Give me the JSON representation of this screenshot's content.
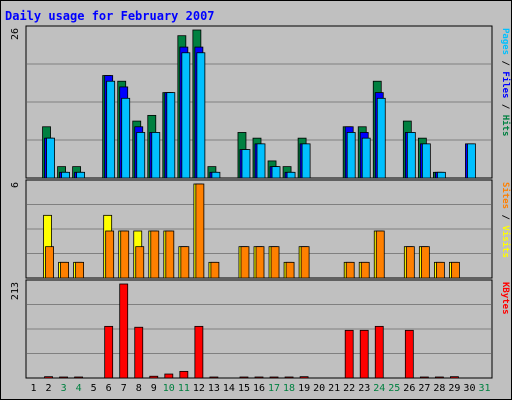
{
  "colors": {
    "background": "#c0c0c0",
    "grid": "#808080",
    "pages": "#00c0ff",
    "files": "#0000ff",
    "hits": "#008040",
    "visits": "#ffff00",
    "sites": "#ff8000",
    "kbytes": "#ff0000",
    "title": "#0000ff",
    "weekend_day_label": "#008040"
  },
  "chart_data": {
    "type": "bar",
    "title": "Daily usage for February 2007",
    "days": [
      1,
      2,
      3,
      4,
      5,
      6,
      7,
      8,
      9,
      10,
      11,
      12,
      13,
      14,
      15,
      16,
      17,
      18,
      19,
      20,
      21,
      22,
      23,
      24,
      25,
      26,
      27,
      28,
      29,
      30,
      31
    ],
    "weekend_days": [
      3,
      4,
      10,
      11,
      17,
      18,
      24,
      25,
      31
    ],
    "panels": [
      {
        "name": "hits-files-pages",
        "ymax": 26,
        "ymax_label": "26",
        "legend": [
          "Pages",
          "/",
          "Files",
          "/",
          "Hits"
        ],
        "series": [
          {
            "name": "Hits",
            "values": [
              0,
              9,
              2,
              2,
              0,
              18,
              17,
              10,
              11,
              15,
              25,
              26,
              2,
              0,
              8,
              7,
              3,
              2,
              7,
              0,
              0,
              9,
              9,
              17,
              0,
              10,
              7,
              1,
              0,
              0,
              0
            ]
          },
          {
            "name": "Files",
            "values": [
              0,
              7,
              1,
              1,
              0,
              18,
              16,
              9,
              8,
              15,
              23,
              23,
              1,
              0,
              5,
              6,
              2,
              1,
              6,
              0,
              0,
              9,
              8,
              15,
              0,
              8,
              6,
              1,
              0,
              6,
              0
            ]
          },
          {
            "name": "Pages",
            "values": [
              0,
              7,
              1,
              1,
              0,
              17,
              14,
              8,
              8,
              15,
              22,
              22,
              1,
              0,
              5,
              6,
              2,
              1,
              6,
              0,
              0,
              8,
              7,
              14,
              0,
              8,
              6,
              1,
              0,
              6,
              0
            ]
          }
        ]
      },
      {
        "name": "visits-sites",
        "ymax": 6,
        "ymax_label": "6",
        "legend": [
          "Sites",
          "/",
          "Visits"
        ],
        "series": [
          {
            "name": "Visits",
            "values": [
              0,
              4,
              1,
              1,
              0,
              4,
              3,
              3,
              3,
              3,
              2,
              6,
              1,
              0,
              2,
              2,
              2,
              1,
              2,
              0,
              0,
              1,
              1,
              3,
              0,
              2,
              2,
              1,
              1,
              0,
              0
            ]
          },
          {
            "name": "Sites",
            "values": [
              0,
              2,
              1,
              1,
              0,
              3,
              3,
              2,
              3,
              3,
              2,
              6,
              1,
              0,
              2,
              2,
              2,
              1,
              2,
              0,
              0,
              1,
              1,
              3,
              0,
              2,
              2,
              1,
              1,
              0,
              0
            ]
          }
        ]
      },
      {
        "name": "kbytes",
        "ymax": 213,
        "ymax_label": "213",
        "legend": [
          "KBytes"
        ],
        "series": [
          {
            "name": "KBytes",
            "values": [
              0,
              3,
              2,
              2,
              0,
              117,
              213,
              115,
              4,
              9,
              15,
              117,
              2,
              0,
              2,
              2,
              2,
              2,
              3,
              0,
              0,
              108,
              108,
              117,
              0,
              108,
              2,
              2,
              3,
              0,
              0
            ]
          }
        ]
      }
    ]
  }
}
